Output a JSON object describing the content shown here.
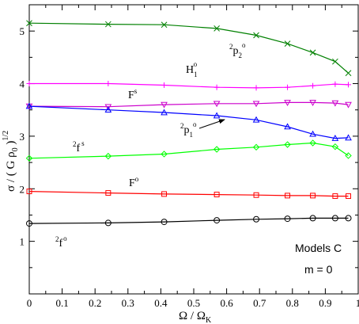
{
  "chart_data": {
    "type": "line",
    "xlabel": "Ω / Ω",
    "xlabel_sub": "K",
    "ylabel": "σ / ( G ρ",
    "ylabel_sub": "0",
    "ylabel_tail": " )",
    "ylabel_sup": "1/2",
    "xlim": [
      0,
      1
    ],
    "ylim": [
      0,
      5.5
    ],
    "xticks": [
      "0",
      "0.1",
      "0.2",
      "0.3",
      "0.4",
      "0.5",
      "0.6",
      "0.7",
      "0.8",
      "0.9",
      "1"
    ],
    "yticks": [
      "1",
      "2",
      "3",
      "4",
      "5"
    ],
    "grid": false,
    "series": [
      {
        "color": "#008000",
        "marker": "x",
        "x": [
          0,
          0.24,
          0.41,
          0.57,
          0.69,
          0.785,
          0.862,
          0.93,
          0.97
        ],
        "y": [
          5.15,
          5.13,
          5.12,
          5.05,
          4.92,
          4.76,
          4.59,
          4.42,
          4.2
        ]
      },
      {
        "color": "#ff00ff",
        "marker": "plus",
        "x": [
          0,
          0.24,
          0.41,
          0.57,
          0.69,
          0.785,
          0.862,
          0.93,
          0.97
        ],
        "y": [
          4.0,
          4.0,
          3.97,
          3.93,
          3.92,
          3.93,
          3.96,
          3.99,
          3.98
        ]
      },
      {
        "color": "#cc00cc",
        "marker": "triangle-down",
        "x": [
          0,
          0.24,
          0.41,
          0.57,
          0.69,
          0.785,
          0.862,
          0.93,
          0.97
        ],
        "y": [
          3.57,
          3.56,
          3.6,
          3.62,
          3.62,
          3.64,
          3.64,
          3.63,
          3.6
        ]
      },
      {
        "color": "#0000ff",
        "marker": "triangle-up",
        "x": [
          0,
          0.24,
          0.41,
          0.57,
          0.69,
          0.785,
          0.862,
          0.93,
          0.97
        ],
        "y": [
          3.57,
          3.5,
          3.45,
          3.39,
          3.31,
          3.18,
          3.04,
          2.96,
          2.97
        ]
      },
      {
        "color": "#00ff00",
        "marker": "diamond",
        "x": [
          0,
          0.24,
          0.41,
          0.57,
          0.69,
          0.785,
          0.862,
          0.93,
          0.97
        ],
        "y": [
          2.58,
          2.62,
          2.66,
          2.75,
          2.79,
          2.84,
          2.87,
          2.8,
          2.63
        ]
      },
      {
        "color": "#ff0000",
        "marker": "square",
        "x": [
          0,
          0.24,
          0.41,
          0.57,
          0.69,
          0.785,
          0.862,
          0.93,
          0.97
        ],
        "y": [
          1.95,
          1.92,
          1.9,
          1.89,
          1.88,
          1.87,
          1.87,
          1.86,
          1.86
        ]
      },
      {
        "color": "#000000",
        "marker": "circle",
        "x": [
          0,
          0.24,
          0.41,
          0.57,
          0.69,
          0.785,
          0.862,
          0.93,
          0.97
        ],
        "y": [
          1.34,
          1.35,
          1.37,
          1.4,
          1.42,
          1.43,
          1.44,
          1.44,
          1.44
        ]
      }
    ],
    "annotations": [
      {
        "id": "p2o",
        "pre": "2",
        "main": "p",
        "sub": "2",
        "sup": "o"
      },
      {
        "id": "Ho1",
        "main": "H",
        "sub": "1",
        "sup": "o"
      },
      {
        "id": "Fs",
        "main": "F",
        "sup": "s"
      },
      {
        "id": "p1o",
        "pre": "2",
        "main": "p",
        "sub": "1",
        "sup": "o"
      },
      {
        "id": "2fs",
        "pre": "2",
        "main": "f",
        "sup": "s"
      },
      {
        "id": "Fo",
        "main": "F",
        "sup": "o"
      },
      {
        "id": "2fo",
        "pre": "2",
        "main": "f",
        "sup": "o"
      }
    ],
    "text_box": {
      "line1": "Models C",
      "line2": "m = 0"
    }
  }
}
